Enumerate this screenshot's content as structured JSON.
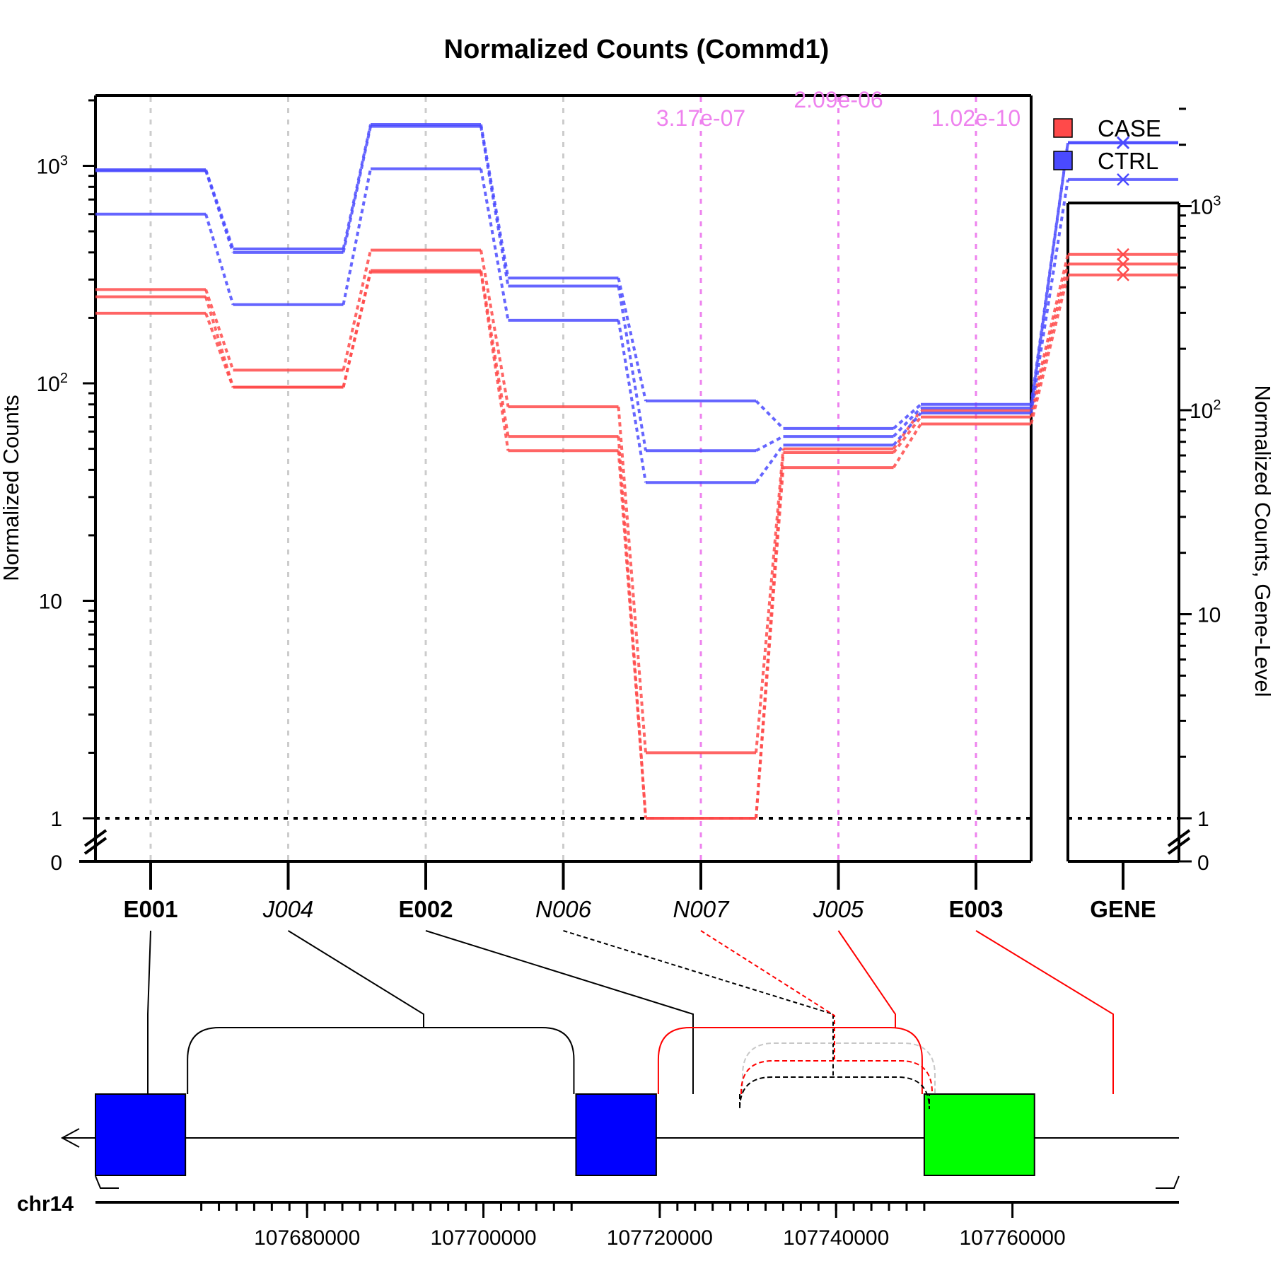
{
  "title": "Normalized Counts (Commd1)",
  "ylabel_left": "Normalized Counts",
  "ylabel_right": "Normalized Counts, Gene-Level",
  "legend": [
    {
      "label": "CASE",
      "color": "#ff4a4a"
    },
    {
      "label": "CTRL",
      "color": "#4a4aff"
    }
  ],
  "colors": {
    "case": "#ff4a4a",
    "ctrl": "#4a4aff",
    "pvalue": "#ee82ee",
    "gridline": "#cccccc",
    "exon_blue": "#0000ff",
    "exon_green": "#00ff00",
    "junction_sig": "#ff0000",
    "junction_nonsig": "#000000",
    "junction_grey": "#c8c8c8"
  },
  "left_ticks": [
    "0",
    "1",
    "10"
  ],
  "right_ticks": [
    "0",
    "1",
    "10"
  ],
  "pvalues": [
    {
      "feature": "N007",
      "text": "3.17e-07"
    },
    {
      "feature": "J005",
      "text": "2.09e-06"
    },
    {
      "feature": "E003",
      "text": "1.02e-10"
    }
  ],
  "chromosome": "chr14",
  "coord_labels": [
    "107680000",
    "107700000",
    "107720000",
    "107740000",
    "107760000"
  ],
  "chart_data": {
    "type": "line",
    "title": "Normalized Counts (Commd1)",
    "ylabel": "Normalized Counts",
    "ylabel_right": "Normalized Counts, Gene-Level",
    "yscale": "log",
    "ylim": [
      0,
      2000
    ],
    "gene_ylim": [
      0,
      3000
    ],
    "threshold_line": 1,
    "grid": true,
    "legend_position": "top-right",
    "categories": [
      "E001",
      "J004",
      "E002",
      "N006",
      "N007",
      "J005",
      "E003"
    ],
    "category_types": [
      "exon",
      "junction",
      "exon",
      "novel",
      "novel",
      "junction",
      "exon"
    ],
    "gene_category": "GENE",
    "series": [
      {
        "group": "CASE",
        "values": [
          270,
          115,
          410,
          78,
          2,
          50,
          75
        ],
        "gene": 580
      },
      {
        "group": "CASE",
        "values": [
          250,
          96,
          330,
          57,
          1,
          48,
          70
        ],
        "gene": 520
      },
      {
        "group": "CASE",
        "values": [
          210,
          96,
          325,
          49,
          1,
          41,
          65
        ],
        "gene": 460
      },
      {
        "group": "CTRL",
        "values": [
          960,
          415,
          1550,
          305,
          83,
          62,
          80
        ],
        "gene": 2050
      },
      {
        "group": "CTRL",
        "values": [
          950,
          400,
          1520,
          280,
          49,
          57,
          77
        ],
        "gene": 2040
      },
      {
        "group": "CTRL",
        "values": [
          600,
          230,
          970,
          195,
          35,
          52,
          73
        ],
        "gene": 1350
      }
    ],
    "pvalues": {
      "N007": "3.17e-07",
      "J005": "2.09e-06",
      "E003": "1.02e-10"
    },
    "genome": {
      "chromosome": "chr14",
      "range": [
        107656000,
        107763000
      ],
      "strand": "-",
      "exons": [
        {
          "id": "E001",
          "start": 107656000,
          "end": 107666200,
          "color": "blue"
        },
        {
          "id": "E002",
          "start": 107710500,
          "end": 107719600,
          "color": "blue"
        },
        {
          "id": "E003",
          "start": 107750000,
          "end": 107762500,
          "color": "green"
        }
      ],
      "junctions": [
        {
          "id": "J004",
          "start": 107666200,
          "end": 107710500,
          "significant": false
        },
        {
          "id": "N006",
          "start": 107719600,
          "end": 107738200,
          "significant": false,
          "novel": true
        },
        {
          "id": "N007",
          "start": 107719600,
          "end": 107738200,
          "significant": true,
          "novel": true
        },
        {
          "id": "J005",
          "start": 107719600,
          "end": 107750000,
          "significant": true
        }
      ]
    }
  }
}
